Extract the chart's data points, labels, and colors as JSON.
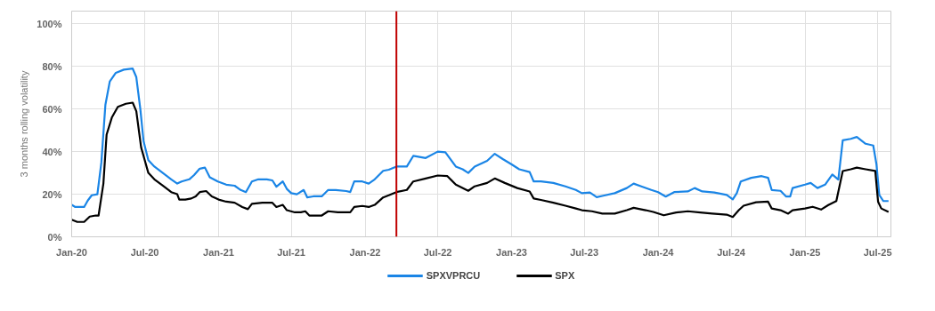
{
  "chart_data": {
    "type": "line",
    "ylabel": "3 months rolling volatility",
    "xlim": [
      "2020-01-01",
      "2025-08-03"
    ],
    "ylim": [
      0,
      106
    ],
    "xticks": [
      {
        "value": "2020-01-01",
        "label": "Jan-20"
      },
      {
        "value": "2020-07-01",
        "label": "Jul-20"
      },
      {
        "value": "2021-01-01",
        "label": "Jan-21"
      },
      {
        "value": "2021-07-01",
        "label": "Jul-21"
      },
      {
        "value": "2022-01-01",
        "label": "Jan-22"
      },
      {
        "value": "2022-07-01",
        "label": "Jul-22"
      },
      {
        "value": "2023-01-01",
        "label": "Jan-23"
      },
      {
        "value": "2023-07-01",
        "label": "Jul-23"
      },
      {
        "value": "2024-01-01",
        "label": "Jan-24"
      },
      {
        "value": "2024-07-01",
        "label": "Jul-24"
      },
      {
        "value": "2025-01-01",
        "label": "Jan-25"
      },
      {
        "value": "2025-07-01",
        "label": "Jul-25"
      }
    ],
    "yticks": [
      {
        "value": 0,
        "label": "0%"
      },
      {
        "value": 20,
        "label": "20%"
      },
      {
        "value": 40,
        "label": "40%"
      },
      {
        "value": 60,
        "label": "60%"
      },
      {
        "value": 80,
        "label": "80%"
      },
      {
        "value": 100,
        "label": "100%"
      }
    ],
    "grid": true,
    "legend": "bottom",
    "marker": "none",
    "line_style": "solid",
    "ref_lines": [
      {
        "axis": "x",
        "value": "2022-03-20",
        "label": null,
        "color": "#c00000"
      }
    ],
    "series": [
      {
        "name": "SPXVPRCU",
        "color": "#1a85e6",
        "x": [
          "2020-01-01",
          "2020-01-10",
          "2020-02-01",
          "2020-02-10",
          "2020-02-20",
          "2020-03-05",
          "2020-03-15",
          "2020-03-25",
          "2020-04-05",
          "2020-04-20",
          "2020-05-10",
          "2020-06-01",
          "2020-06-10",
          "2020-06-20",
          "2020-06-28",
          "2020-07-10",
          "2020-07-25",
          "2020-08-15",
          "2020-09-05",
          "2020-09-20",
          "2020-10-01",
          "2020-10-20",
          "2020-11-01",
          "2020-11-15",
          "2020-11-28",
          "2020-12-10",
          "2020-12-30",
          "2021-01-20",
          "2021-02-10",
          "2021-02-25",
          "2021-03-10",
          "2021-03-25",
          "2021-04-10",
          "2021-05-01",
          "2021-05-15",
          "2021-05-25",
          "2021-06-10",
          "2021-06-20",
          "2021-07-01",
          "2021-07-15",
          "2021-08-01",
          "2021-08-10",
          "2021-08-25",
          "2021-09-15",
          "2021-10-01",
          "2021-10-20",
          "2021-11-15",
          "2021-11-25",
          "2021-12-05",
          "2021-12-25",
          "2022-01-10",
          "2022-01-25",
          "2022-02-15",
          "2022-03-01",
          "2022-03-20",
          "2022-04-15",
          "2022-05-01",
          "2022-06-01",
          "2022-07-01",
          "2022-07-20",
          "2022-08-15",
          "2022-09-01",
          "2022-09-15",
          "2022-10-01",
          "2022-11-01",
          "2022-11-20",
          "2022-12-10",
          "2023-01-01",
          "2023-01-20",
          "2023-02-15",
          "2023-02-25",
          "2023-03-15",
          "2023-04-15",
          "2023-05-15",
          "2023-06-10",
          "2023-06-25",
          "2023-07-15",
          "2023-08-01",
          "2023-08-20",
          "2023-09-15",
          "2023-10-15",
          "2023-11-01",
          "2023-11-20",
          "2023-12-15",
          "2024-01-01",
          "2024-01-20",
          "2024-02-10",
          "2024-03-15",
          "2024-04-01",
          "2024-04-20",
          "2024-05-20",
          "2024-06-20",
          "2024-07-05",
          "2024-07-15",
          "2024-07-25",
          "2024-08-20",
          "2024-09-15",
          "2024-10-01",
          "2024-10-10",
          "2024-11-01",
          "2024-11-15",
          "2024-11-25",
          "2024-12-01",
          "2025-01-01",
          "2025-01-15",
          "2025-02-01",
          "2025-02-20",
          "2025-03-10",
          "2025-03-25",
          "2025-04-05",
          "2025-04-25",
          "2025-05-10",
          "2025-06-01",
          "2025-06-20",
          "2025-06-28",
          "2025-07-05",
          "2025-07-15",
          "2025-07-28"
        ],
        "values": [
          15,
          14,
          14,
          17,
          19.5,
          20,
          35,
          62,
          73,
          77,
          78.5,
          79,
          75,
          60,
          45,
          36,
          33,
          30,
          27,
          25,
          26,
          27,
          29,
          32,
          32.5,
          28,
          26,
          24.5,
          24,
          22,
          21,
          26,
          27,
          27,
          26.5,
          23.5,
          26,
          22.5,
          20.5,
          20,
          22,
          18.5,
          19,
          19,
          22,
          22,
          21.5,
          21,
          26,
          26,
          25,
          27,
          31,
          31.5,
          33,
          33,
          38,
          37,
          40,
          39.7,
          33,
          31.7,
          30,
          33,
          35.7,
          39,
          36.5,
          34,
          31.7,
          30.4,
          26,
          26,
          25.3,
          23.7,
          22,
          20.5,
          20.8,
          18.6,
          19.4,
          20.5,
          22.9,
          25,
          23.7,
          22,
          21,
          18.9,
          21,
          21.3,
          22.9,
          21.3,
          20.8,
          19.7,
          17.6,
          20.5,
          26,
          27.7,
          28.5,
          27.7,
          22,
          21.6,
          18.9,
          18.9,
          22.9,
          24.5,
          25.3,
          22.9,
          24.5,
          29.3,
          26.9,
          45.3,
          46,
          46.9,
          43.7,
          42.9,
          34,
          19.7,
          16.8,
          16.8
        ]
      },
      {
        "name": "SPX",
        "color": "#000000",
        "x": [
          "2020-01-01",
          "2020-01-15",
          "2020-02-01",
          "2020-02-15",
          "2020-03-01",
          "2020-03-08",
          "2020-03-20",
          "2020-03-28",
          "2020-04-10",
          "2020-04-25",
          "2020-05-15",
          "2020-06-01",
          "2020-06-10",
          "2020-06-22",
          "2020-07-01",
          "2020-07-10",
          "2020-07-25",
          "2020-08-15",
          "2020-09-05",
          "2020-09-20",
          "2020-09-25",
          "2020-10-10",
          "2020-10-25",
          "2020-11-05",
          "2020-11-15",
          "2020-12-01",
          "2020-12-15",
          "2021-01-01",
          "2021-01-20",
          "2021-02-10",
          "2021-03-01",
          "2021-03-15",
          "2021-03-25",
          "2021-04-20",
          "2021-05-15",
          "2021-05-25",
          "2021-06-10",
          "2021-06-20",
          "2021-07-10",
          "2021-07-25",
          "2021-08-05",
          "2021-08-15",
          "2021-09-15",
          "2021-10-01",
          "2021-10-25",
          "2021-11-25",
          "2021-12-05",
          "2021-12-25",
          "2022-01-10",
          "2022-01-25",
          "2022-02-15",
          "2022-03-01",
          "2022-03-20",
          "2022-04-15",
          "2022-05-01",
          "2022-06-01",
          "2022-07-01",
          "2022-07-25",
          "2022-08-15",
          "2022-09-15",
          "2022-10-01",
          "2022-11-01",
          "2022-11-20",
          "2022-12-15",
          "2023-01-15",
          "2023-02-15",
          "2023-02-25",
          "2023-03-15",
          "2023-04-15",
          "2023-05-15",
          "2023-06-10",
          "2023-06-25",
          "2023-07-20",
          "2023-08-15",
          "2023-09-15",
          "2023-10-15",
          "2023-11-01",
          "2023-12-01",
          "2023-12-20",
          "2024-01-15",
          "2024-02-15",
          "2024-03-15",
          "2024-04-15",
          "2024-05-15",
          "2024-06-20",
          "2024-07-05",
          "2024-07-20",
          "2024-08-01",
          "2024-09-01",
          "2024-10-01",
          "2024-10-10",
          "2024-11-01",
          "2024-11-20",
          "2024-12-01",
          "2025-01-01",
          "2025-01-20",
          "2025-02-10",
          "2025-02-28",
          "2025-03-20",
          "2025-04-05",
          "2025-04-25",
          "2025-05-10",
          "2025-06-01",
          "2025-06-25",
          "2025-07-02",
          "2025-07-10",
          "2025-07-28"
        ],
        "values": [
          8,
          7,
          7,
          9.5,
          10,
          10,
          25,
          48,
          56,
          61,
          62.5,
          63,
          59,
          42,
          36,
          30,
          27,
          24,
          21,
          20,
          17.5,
          17.5,
          18,
          19,
          21,
          21.5,
          19,
          17.5,
          16.5,
          16,
          14,
          13,
          15.5,
          16,
          16,
          14,
          15,
          12.5,
          11.5,
          11.5,
          12,
          10,
          10,
          12,
          11.5,
          11.5,
          14,
          14.5,
          14,
          15,
          18.5,
          19.5,
          21,
          22,
          26,
          27.4,
          28.8,
          28.5,
          24.5,
          21.6,
          23.7,
          25.3,
          27.4,
          25.3,
          22.9,
          21.3,
          18,
          17.3,
          16,
          14.6,
          13.3,
          12.5,
          12,
          10.9,
          10.9,
          12.5,
          13.6,
          12.5,
          11.7,
          10.1,
          11.4,
          12,
          11.4,
          10.9,
          10.4,
          9.3,
          12.5,
          14.6,
          16.2,
          16.5,
          13.3,
          12.5,
          10.9,
          12.5,
          13.3,
          14.1,
          12.8,
          14.9,
          16.8,
          30.9,
          31.7,
          32.5,
          31.7,
          30.9,
          16.5,
          13.3,
          11.7
        ]
      }
    ]
  }
}
